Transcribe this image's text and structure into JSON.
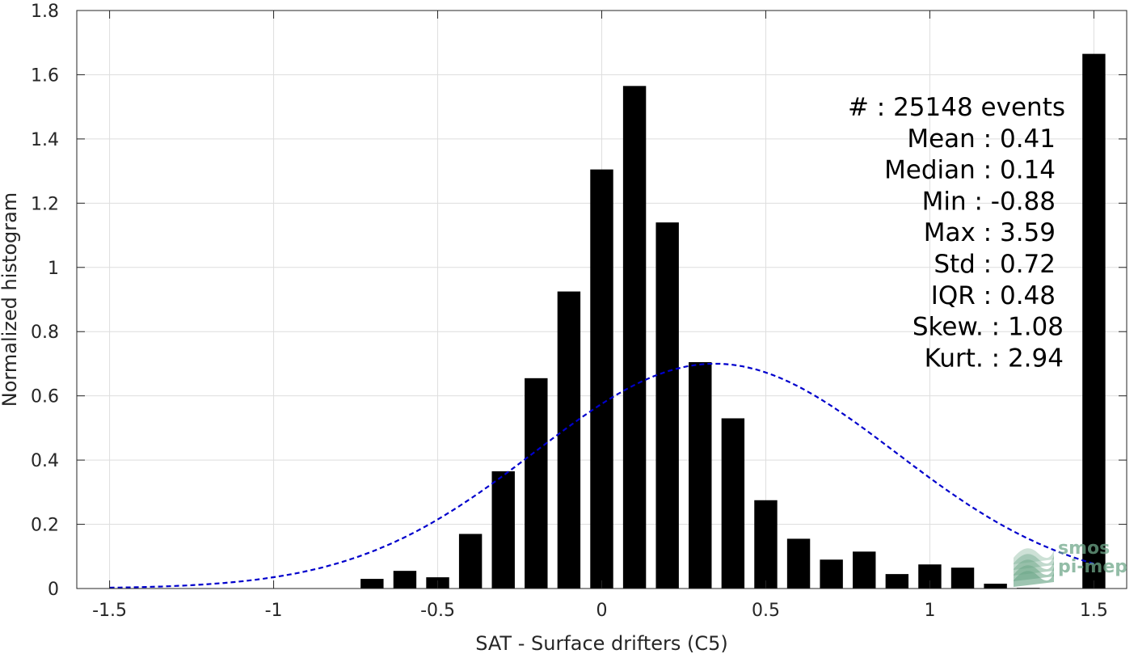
{
  "chart_data": {
    "type": "bar",
    "xlabel": "SAT - Surface drifters (C5)",
    "ylabel": "Normalized histogram",
    "xlim": [
      -1.6,
      1.6
    ],
    "ylim": [
      0,
      1.8
    ],
    "grid": true,
    "x_ticks": [
      -1.5,
      -1,
      -0.5,
      0,
      0.5,
      1,
      1.5
    ],
    "x_tick_labels": [
      "-1.5",
      "-1",
      "-0.5",
      "0",
      "0.5",
      "1",
      "1.5"
    ],
    "y_ticks": [
      0,
      0.2,
      0.4,
      0.6,
      0.8,
      1,
      1.2,
      1.4,
      1.6,
      1.8
    ],
    "y_tick_labels": [
      "0",
      "0.2",
      "0.4",
      "0.6",
      "0.8",
      "1",
      "1.2",
      "1.4",
      "1.6",
      "1.8"
    ],
    "bar_width": 0.07,
    "bars": [
      {
        "x": -0.7,
        "value": 0.03
      },
      {
        "x": -0.6,
        "value": 0.055
      },
      {
        "x": -0.5,
        "value": 0.035
      },
      {
        "x": -0.4,
        "value": 0.17
      },
      {
        "x": -0.3,
        "value": 0.365
      },
      {
        "x": -0.2,
        "value": 0.655
      },
      {
        "x": -0.1,
        "value": 0.925
      },
      {
        "x": 0.0,
        "value": 1.305
      },
      {
        "x": 0.1,
        "value": 1.565
      },
      {
        "x": 0.2,
        "value": 1.14
      },
      {
        "x": 0.3,
        "value": 0.705
      },
      {
        "x": 0.4,
        "value": 0.53
      },
      {
        "x": 0.5,
        "value": 0.275
      },
      {
        "x": 0.6,
        "value": 0.155
      },
      {
        "x": 0.7,
        "value": 0.09
      },
      {
        "x": 0.8,
        "value": 0.115
      },
      {
        "x": 0.9,
        "value": 0.045
      },
      {
        "x": 1.0,
        "value": 0.075
      },
      {
        "x": 1.1,
        "value": 0.065
      },
      {
        "x": 1.2,
        "value": 0.015
      },
      {
        "x": 1.3,
        "value": 0.002
      },
      {
        "x": 1.5,
        "value": 1.665
      }
    ],
    "fit_curve": {
      "type": "gaussian",
      "mean": 0.345,
      "amplitude": 0.7,
      "sigma": 0.55,
      "x_range": [
        -1.5,
        1.5
      ],
      "color": "#0000cc",
      "style": "dashed"
    },
    "bar_color": "#000000",
    "stats": [
      "#  : 25148 events",
      "Mean : 0.41",
      "Median : 0.14",
      "Min : -0.88",
      "Max : 3.59",
      "Std : 0.72",
      "IQR : 0.48",
      "Skew. : 1.08",
      "Kurt. : 2.94"
    ]
  },
  "watermark": {
    "line1": "smos",
    "line2": "pi-mep",
    "color": "#6fa88a"
  }
}
